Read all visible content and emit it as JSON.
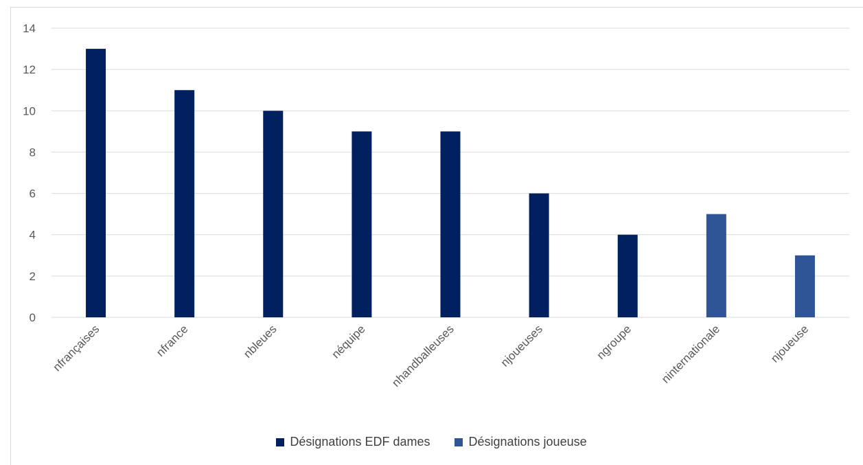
{
  "chart_data": {
    "type": "bar",
    "categories": [
      "nfrançaises",
      "nfrance",
      "nbleues",
      "néquipe",
      "nhandballeuses",
      "njoueuses",
      "ngroupe",
      "ninternationale",
      "njoueuse"
    ],
    "series": [
      {
        "name": "Désignations EDF dames",
        "color": "#002060",
        "values": [
          13,
          11,
          10,
          9,
          9,
          6,
          4,
          null,
          null
        ]
      },
      {
        "name": "Désignations joueuse",
        "color": "#2f5597",
        "values": [
          null,
          null,
          null,
          null,
          null,
          null,
          null,
          5,
          3
        ]
      }
    ],
    "ylim": [
      0,
      14
    ],
    "yticks": [
      0,
      2,
      4,
      6,
      8,
      10,
      12,
      14
    ],
    "grid": true,
    "legend_position": "bottom"
  }
}
